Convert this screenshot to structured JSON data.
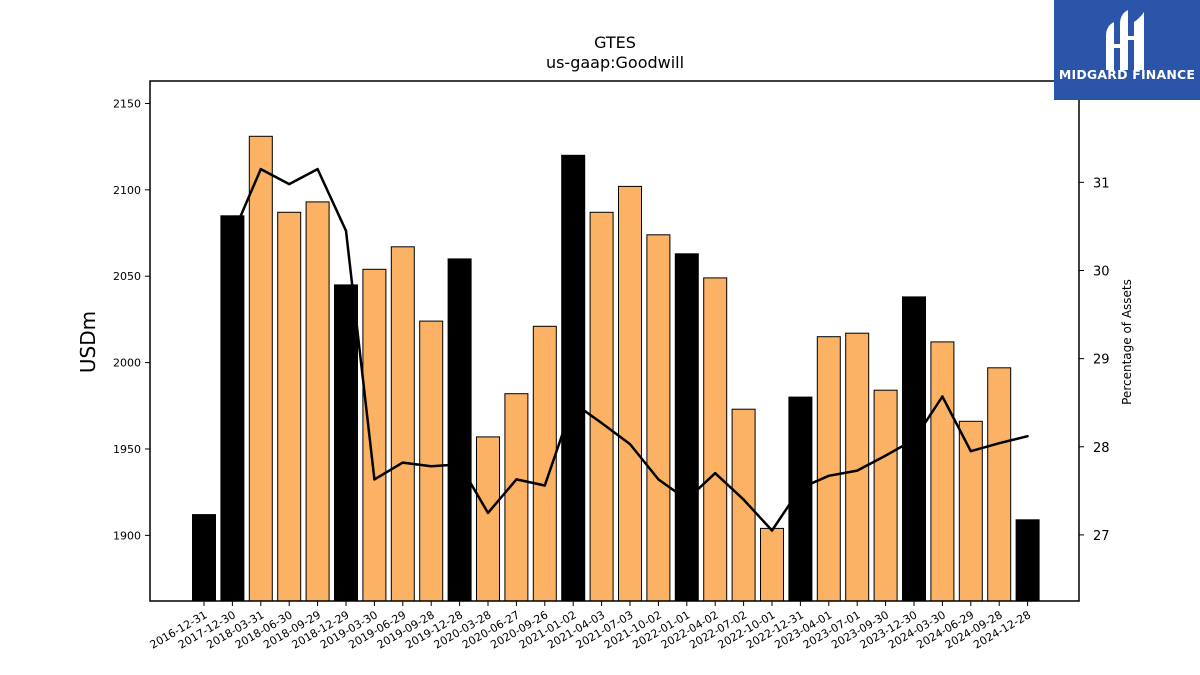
{
  "chart_data": {
    "type": "bar",
    "title": "GTES",
    "subtitle": "us-gaap:Goodwill",
    "ylabel": "USDm",
    "y2label": "Percentage of Assets",
    "ylim": [
      1862,
      2163
    ],
    "y2lim": [
      26.25,
      32.15
    ],
    "yticks": [
      1900,
      1950,
      2000,
      2050,
      2100,
      2150
    ],
    "y2ticks": [
      27,
      28,
      29,
      30,
      31
    ],
    "categories": [
      "2016-12-31",
      "2017-12-30",
      "2018-03-31",
      "2018-06-30",
      "2018-09-29",
      "2018-12-29",
      "2019-03-30",
      "2019-06-29",
      "2019-09-28",
      "2019-12-28",
      "2020-03-28",
      "2020-06-27",
      "2020-09-26",
      "2021-01-02",
      "2021-04-03",
      "2021-07-03",
      "2021-10-02",
      "2022-01-01",
      "2022-04-02",
      "2022-07-02",
      "2022-10-01",
      "2022-12-31",
      "2023-04-01",
      "2023-07-01",
      "2023-09-30",
      "2023-12-30",
      "2024-03-30",
      "2024-06-29",
      "2024-09-28",
      "2024-12-28"
    ],
    "series": [
      {
        "type": "bar",
        "values": [
          1912,
          2085,
          2131,
          2087,
          2093,
          2045,
          2054,
          2067,
          2024,
          2060,
          1957,
          1982,
          2021,
          2120,
          2087,
          2102,
          2074,
          2063,
          2049,
          1973,
          1904,
          1980,
          2015,
          2017,
          1984,
          2038,
          2012,
          1966,
          1997,
          1909
        ],
        "annual": [
          true,
          true,
          false,
          false,
          false,
          true,
          false,
          false,
          false,
          true,
          false,
          false,
          false,
          true,
          false,
          false,
          false,
          true,
          false,
          false,
          false,
          true,
          false,
          false,
          false,
          true,
          false,
          false,
          false,
          true
        ]
      },
      {
        "type": "line",
        "axis": "right",
        "values": [
          null,
          30.4,
          31.15,
          30.98,
          31.15,
          30.45,
          27.63,
          27.82,
          27.78,
          27.8,
          27.25,
          27.63,
          27.56,
          28.5,
          28.27,
          28.03,
          27.63,
          27.4,
          27.7,
          27.4,
          27.05,
          27.53,
          27.67,
          27.73,
          27.9,
          28.08,
          28.57,
          27.95,
          28.04,
          28.12
        ]
      }
    ],
    "colors": {
      "annual_bar": "#000000",
      "quarterly_bar": "#fbb264",
      "line": "#000000"
    }
  },
  "logo": {
    "text": "MIDGARD FINANCE"
  }
}
